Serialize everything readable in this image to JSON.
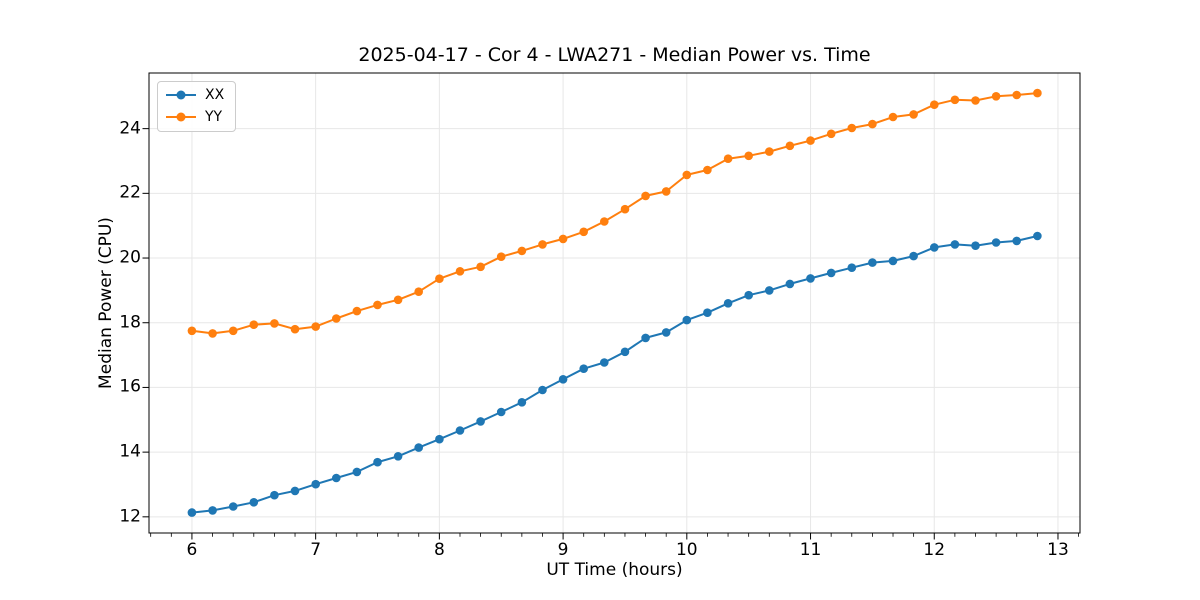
{
  "chart_data": {
    "type": "line",
    "title": "2025-04-17 - Cor 4 - LWA271 - Median Power vs. Time",
    "xlabel": "UT Time (hours)",
    "ylabel": "Median Power (CPU)",
    "xlim": [
      5.653,
      13.178
    ],
    "ylim": [
      11.5,
      25.72
    ],
    "xticks": [
      6,
      7,
      8,
      9,
      10,
      11,
      12,
      13
    ],
    "yticks": [
      12,
      14,
      16,
      18,
      20,
      22,
      24
    ],
    "x_minor_tick_step": 0.16667,
    "grid": true,
    "legend_position": "upper-left",
    "marker": "circle",
    "x": [
      6.0,
      6.1667,
      6.3333,
      6.5,
      6.6667,
      6.8333,
      7.0,
      7.1667,
      7.3333,
      7.5,
      7.6667,
      7.8333,
      8.0,
      8.1667,
      8.3333,
      8.5,
      8.6667,
      8.8333,
      9.0,
      9.1667,
      9.3333,
      9.5,
      9.6667,
      9.8333,
      10.0,
      10.1667,
      10.3333,
      10.5,
      10.6667,
      10.8333,
      11.0,
      11.1667,
      11.3333,
      11.5,
      11.6667,
      11.8333,
      12.0,
      12.1667,
      12.3333,
      12.5,
      12.6667,
      12.8333
    ],
    "series": [
      {
        "name": "XX",
        "color": "#1f77b4",
        "values": [
          12.13,
          12.2,
          12.32,
          12.45,
          12.67,
          12.8,
          13.01,
          13.2,
          13.39,
          13.69,
          13.87,
          14.14,
          14.4,
          14.67,
          14.95,
          15.24,
          15.54,
          15.92,
          16.25,
          16.58,
          16.77,
          17.1,
          17.53,
          17.7,
          18.08,
          18.31,
          18.6,
          18.85,
          19.0,
          19.2,
          19.37,
          19.54,
          19.7,
          19.86,
          19.91,
          20.06,
          20.33,
          20.42,
          20.38,
          20.48,
          20.53,
          20.68
        ]
      },
      {
        "name": "YY",
        "color": "#ff7f0e",
        "values": [
          17.75,
          17.67,
          17.75,
          17.94,
          17.98,
          17.8,
          17.88,
          18.13,
          18.36,
          18.55,
          18.71,
          18.96,
          19.36,
          19.59,
          19.73,
          20.04,
          20.22,
          20.42,
          20.59,
          20.81,
          21.13,
          21.51,
          21.92,
          22.06,
          22.57,
          22.72,
          23.07,
          23.16,
          23.29,
          23.47,
          23.63,
          23.84,
          24.02,
          24.14,
          24.36,
          24.44,
          24.74,
          24.89,
          24.87,
          25.0,
          25.04,
          25.1
        ]
      }
    ],
    "colors": {
      "grid": "#e7e7e7",
      "spine": "#000000",
      "tick": "#000000",
      "background": "#ffffff"
    }
  }
}
